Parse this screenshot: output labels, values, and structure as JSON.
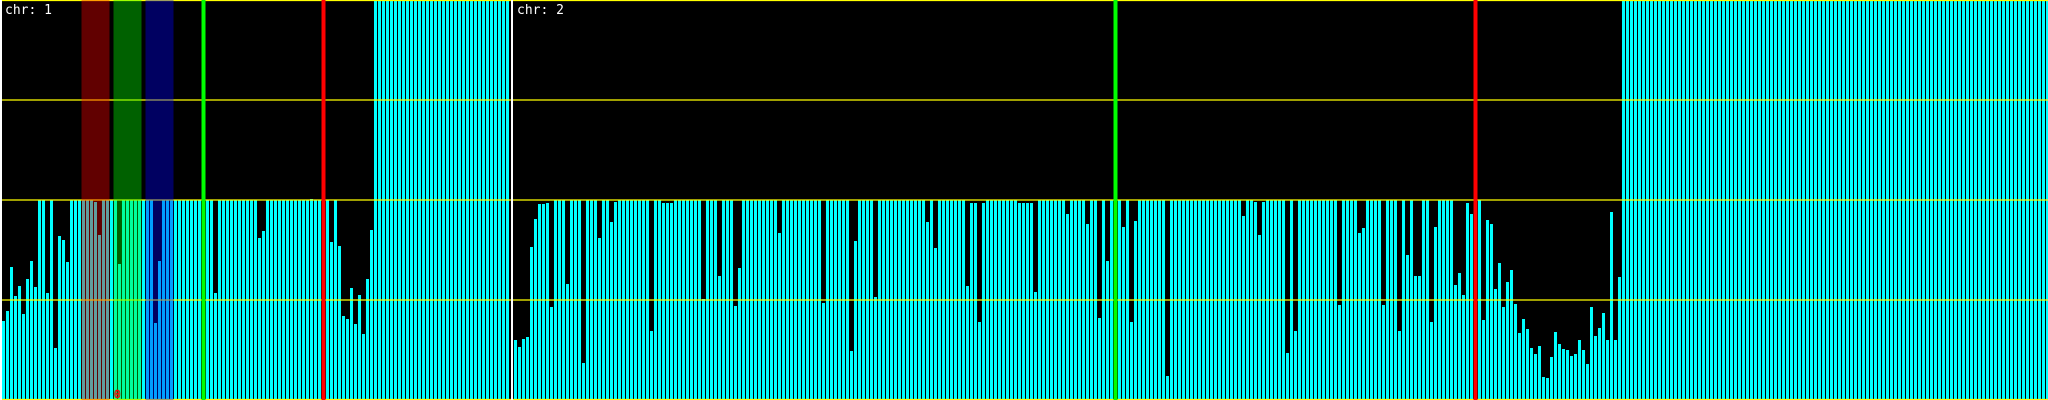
{
  "chart_data": {
    "type": "bar",
    "ylim": [
      0,
      4
    ],
    "grid": true,
    "gridlines_y": [
      0,
      1,
      2,
      3,
      4
    ],
    "colors": {
      "background": "#000000",
      "bar": "#00ffff",
      "grid": "#ffff00",
      "separator": "#ffffff",
      "label": "#ffffff"
    },
    "panels": [
      {
        "label": "chr: 1",
        "values": [
          0.79,
          0.89,
          1.33,
          1.04,
          1.14,
          0.86,
          1.21,
          1.39,
          1.13,
          2,
          2,
          1.07,
          2,
          0.52,
          1.64,
          1.6,
          1.38,
          2,
          2,
          2,
          2,
          2,
          2,
          1.98,
          1.65,
          2,
          2,
          2,
          2,
          1.36,
          2,
          2,
          2,
          2,
          2,
          2,
          2,
          2,
          0.77,
          1.39,
          2,
          2,
          2,
          2,
          2,
          2,
          2,
          2,
          2,
          2,
          2,
          2,
          2,
          1.07,
          2,
          2,
          2,
          2,
          2,
          2,
          2,
          2,
          2,
          2,
          1.62,
          1.69,
          2,
          2,
          2,
          2,
          2,
          2,
          2,
          2,
          2,
          2,
          2,
          2.01,
          2,
          2,
          2,
          2,
          1.58,
          2,
          1.54,
          0.84,
          0.81,
          1.12,
          0.76,
          1.05,
          0.66,
          1.21,
          1.7,
          4,
          4,
          4,
          4,
          4,
          4,
          4,
          4,
          4,
          4,
          4,
          4,
          4,
          4,
          4,
          4,
          4,
          4,
          4,
          4,
          4,
          4,
          4,
          4,
          4,
          4,
          4,
          4,
          4,
          4,
          4,
          4,
          4,
          4
        ],
        "bands": [
          {
            "from": 20,
            "to": 26,
            "color": "#ff0000"
          },
          {
            "from": 28,
            "to": 34,
            "color": "#00ff00"
          },
          {
            "from": 36,
            "to": 42,
            "color": "#0000ff"
          }
        ],
        "markers": [
          {
            "at": 50,
            "color": "#00ff00"
          },
          {
            "at": 80,
            "color": "#ff0000"
          }
        ],
        "annotations": [
          {
            "at": 28,
            "text": "0",
            "color": "#ff0000"
          }
        ]
      },
      {
        "label": "chr: 2",
        "values": [
          0.6,
          0.53,
          0.61,
          0.63,
          1.53,
          1.81,
          1.96,
          1.96,
          1.97,
          0.93,
          2,
          2,
          2,
          1.16,
          2,
          2,
          2,
          0.37,
          2,
          2,
          2,
          1.62,
          2,
          2,
          1.78,
          1.98,
          2,
          2,
          2,
          2,
          2,
          2,
          2,
          2,
          0.69,
          2,
          2,
          1.97,
          1.97,
          1.97,
          2,
          2,
          2,
          2,
          2,
          2,
          2,
          1.01,
          2,
          2,
          2,
          1.24,
          2,
          2,
          2,
          0.94,
          1.32,
          2,
          2,
          2,
          2,
          2,
          2,
          2,
          2,
          2,
          1.67,
          2,
          2,
          2,
          2,
          2,
          2,
          2,
          2,
          2,
          2,
          0.97,
          2,
          2,
          2,
          2,
          2,
          2,
          0.49,
          1.59,
          2,
          2,
          2,
          2,
          1.03,
          2,
          2,
          2,
          2,
          2,
          2,
          2,
          2,
          2,
          2,
          2,
          2,
          1.78,
          2,
          1.52,
          2,
          2,
          2,
          2,
          2,
          2,
          2,
          1.14,
          1.97,
          1.97,
          0.78,
          1.97,
          2,
          2,
          2,
          2,
          2,
          2,
          2,
          2,
          1.97,
          1.97,
          1.97,
          1.97,
          1.08,
          2,
          2,
          2,
          2,
          2,
          2,
          2,
          1.86,
          2,
          2,
          2,
          2,
          1.76,
          2,
          2,
          0.82,
          2,
          1.39,
          2,
          2,
          2,
          1.73,
          2,
          0.78,
          1.79,
          2,
          2,
          2,
          2,
          2,
          2,
          2,
          0.24,
          2,
          2,
          2,
          2,
          2,
          2,
          2,
          2,
          2,
          2,
          2,
          2,
          2,
          2,
          2,
          2,
          2,
          2,
          1.84,
          2,
          2,
          1.98,
          1.65,
          1.98,
          2,
          2,
          2,
          2,
          2,
          0.47,
          2,
          0.69,
          2,
          2,
          2,
          2,
          2,
          2,
          2,
          2,
          2,
          2,
          0.95,
          2,
          2,
          2,
          2,
          1.67,
          1.72,
          2,
          2,
          2,
          2,
          0.95,
          2,
          2,
          2,
          0.69,
          2,
          1.45,
          2,
          1.24,
          1.24,
          2,
          2,
          0.78,
          1.73,
          2,
          2,
          2,
          2,
          1.15,
          1.27,
          1.05,
          1.97,
          1.86,
          2,
          2,
          0.8,
          1.8,
          1.76,
          1.11,
          1.37,
          0.93,
          1.18,
          1.3,
          0.96,
          0.67,
          0.81,
          0.71,
          0.52,
          0.46,
          0.54,
          0.23,
          0.22,
          0.43,
          0.68,
          0.56,
          0.51,
          0.5,
          0.44,
          0.46,
          0.6,
          0.5,
          0.36,
          0.93,
          0.64,
          0.72,
          0.87,
          0.6,
          1.88,
          0.6,
          1.23,
          4,
          4,
          4,
          4,
          4,
          4,
          4,
          4,
          4,
          4,
          4,
          4,
          4,
          4,
          4,
          4,
          4,
          4,
          4,
          4,
          4,
          4,
          4,
          4,
          4,
          4,
          4,
          4,
          4,
          4,
          4,
          4,
          4,
          4,
          4,
          4,
          4,
          4,
          4,
          4,
          4,
          4,
          4,
          4,
          4,
          4,
          4,
          4,
          4,
          4,
          4,
          4,
          4,
          4,
          4,
          4,
          4,
          4,
          4,
          4,
          4,
          4,
          4,
          4,
          4,
          4,
          4,
          4,
          4,
          4,
          4,
          4,
          4,
          4,
          4,
          4,
          4,
          4,
          4,
          4,
          4,
          4,
          4,
          4,
          4,
          4,
          4,
          4,
          4,
          4,
          4,
          4,
          4,
          4,
          4,
          4,
          4,
          4,
          4,
          4,
          4,
          4,
          4,
          4,
          4,
          4,
          4
        ],
        "bands": [],
        "markers": [
          {
            "at": 150,
            "color": "#00ff00"
          },
          {
            "at": 240,
            "color": "#ff0000"
          }
        ],
        "annotations": []
      }
    ]
  }
}
